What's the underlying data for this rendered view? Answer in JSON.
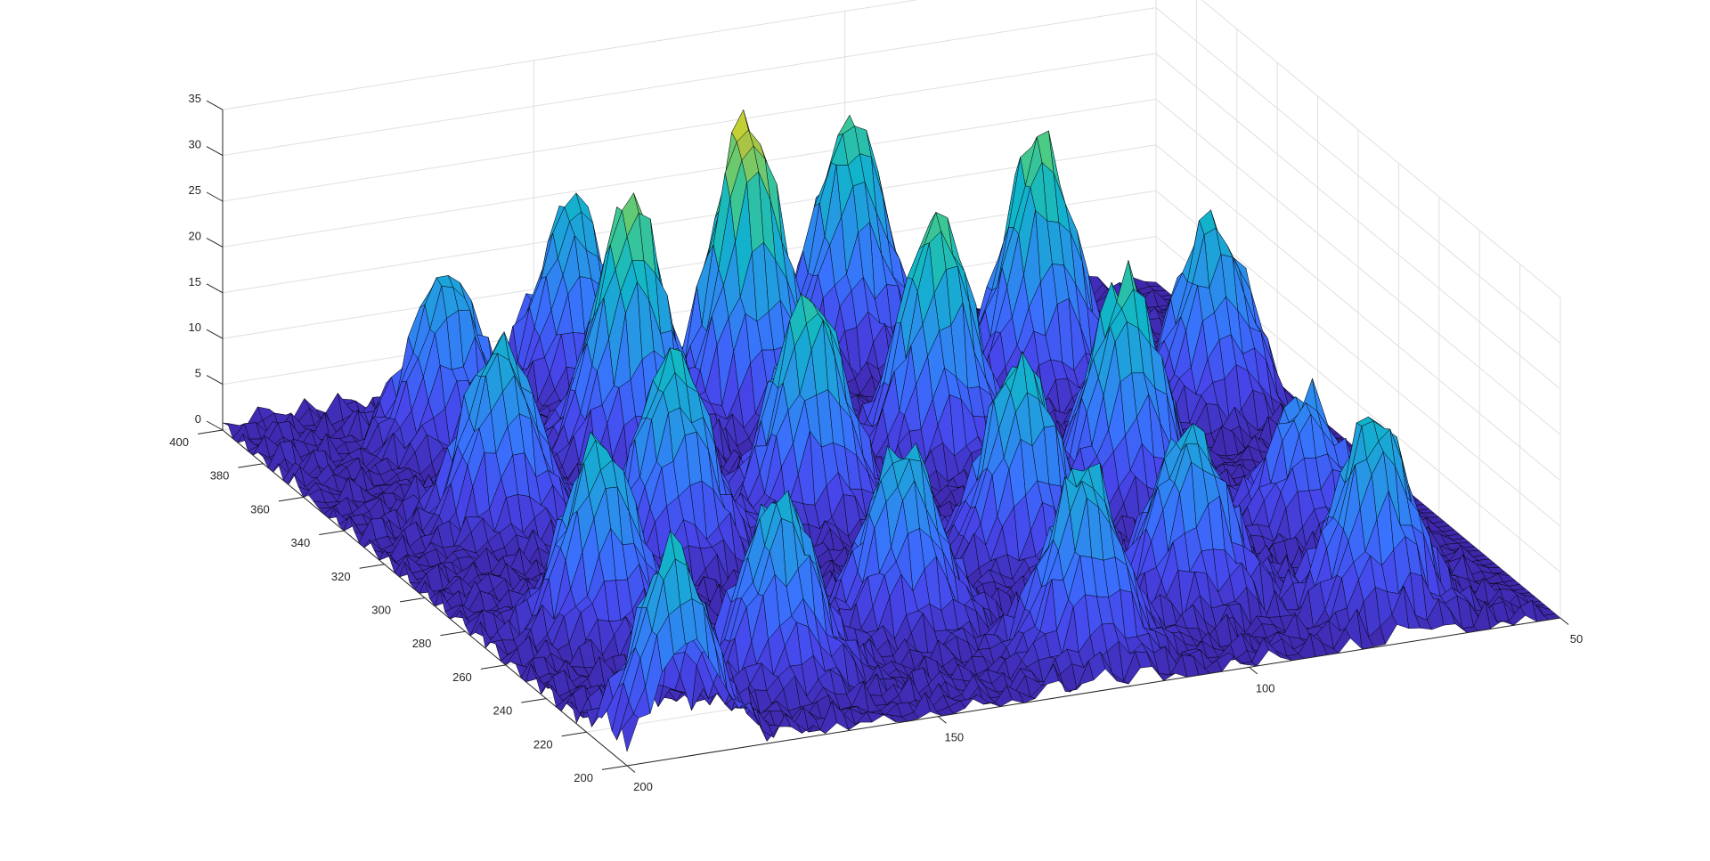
{
  "chart_data": {
    "type": "surface",
    "title": "",
    "xlabel": "",
    "ylabel": "",
    "zlabel": "",
    "xlim": [
      200,
      50
    ],
    "ylim": [
      200,
      400
    ],
    "zlim": [
      0,
      35
    ],
    "x_ticks": [
      "200",
      "150",
      "100",
      "50"
    ],
    "y_ticks": [
      "200",
      "220",
      "240",
      "260",
      "280",
      "300",
      "320",
      "340",
      "360",
      "380",
      "400"
    ],
    "z_ticks": [
      "0",
      "5",
      "10",
      "15",
      "20",
      "25",
      "30",
      "35"
    ],
    "grid": true,
    "colormap": "parula",
    "edge_color": "#000000",
    "background_color": "#ffffff",
    "peaks": [
      {
        "x": 190,
        "y": 208,
        "z": 21
      },
      {
        "x": 182,
        "y": 268,
        "z": 21
      },
      {
        "x": 178,
        "y": 330,
        "z": 20
      },
      {
        "x": 172,
        "y": 375,
        "z": 18
      },
      {
        "x": 165,
        "y": 232,
        "z": 20
      },
      {
        "x": 160,
        "y": 300,
        "z": 22
      },
      {
        "x": 150,
        "y": 352,
        "z": 28
      },
      {
        "x": 146,
        "y": 392,
        "z": 20
      },
      {
        "x": 140,
        "y": 248,
        "z": 19
      },
      {
        "x": 135,
        "y": 310,
        "z": 24
      },
      {
        "x": 127,
        "y": 365,
        "z": 32
      },
      {
        "x": 120,
        "y": 220,
        "z": 20
      },
      {
        "x": 113,
        "y": 272,
        "z": 22
      },
      {
        "x": 108,
        "y": 330,
        "z": 26
      },
      {
        "x": 103,
        "y": 388,
        "z": 25
      },
      {
        "x": 97,
        "y": 238,
        "z": 19
      },
      {
        "x": 90,
        "y": 292,
        "z": 24
      },
      {
        "x": 83,
        "y": 356,
        "z": 27
      },
      {
        "x": 74,
        "y": 218,
        "z": 21
      },
      {
        "x": 70,
        "y": 264,
        "z": 14
      },
      {
        "x": 63,
        "y": 332,
        "z": 20
      }
    ]
  }
}
